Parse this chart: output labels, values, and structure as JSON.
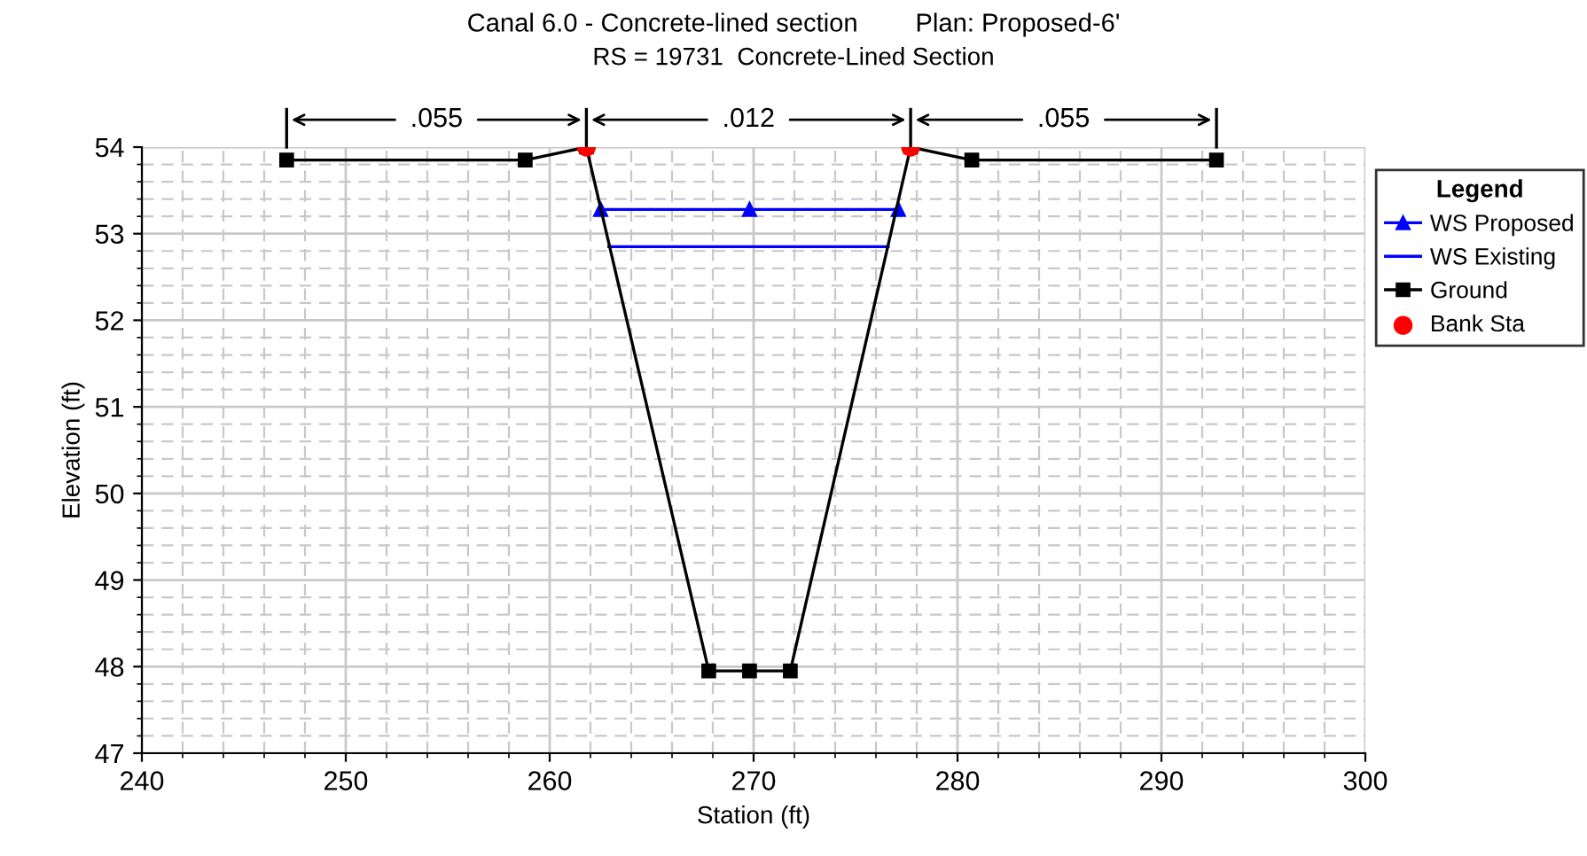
{
  "chart_data": {
    "type": "line",
    "title": "Canal 6.0 - Concrete-lined section        Plan: Proposed-6'",
    "subtitle": "RS = 19731  Concrete-Lined Section",
    "xlabel": "Station (ft)",
    "ylabel": "Elevation (ft)",
    "legend_title": "Legend",
    "series": [
      {
        "name": "WS Proposed",
        "color": "#0000ff",
        "marker": "triangle",
        "x": [
          262.5,
          269.8,
          277.1
        ],
        "values": [
          53.28,
          53.28,
          53.28
        ]
      },
      {
        "name": "WS Existing",
        "color": "#0000ff",
        "marker": "none",
        "x": [
          262.9,
          276.6
        ],
        "values": [
          52.85,
          52.85
        ]
      },
      {
        "name": "Ground",
        "color": "#000000",
        "marker": "square",
        "x": [
          247.1,
          258.8,
          261.8,
          267.8,
          269.8,
          271.8,
          277.7,
          280.7,
          292.7
        ],
        "values": [
          53.85,
          53.85,
          54.0,
          47.95,
          47.95,
          47.95,
          54.0,
          53.85,
          53.85
        ]
      },
      {
        "name": "Bank Sta",
        "type": "scatter",
        "color": "#ff0000",
        "marker": "circle",
        "x": [
          261.8,
          277.7
        ],
        "values": [
          54.0,
          54.0
        ]
      }
    ],
    "annotations": [
      ".055",
      ".012",
      ".055"
    ],
    "xlim": [
      240,
      300
    ],
    "xticks": [
      240,
      250,
      260,
      270,
      280,
      290,
      300
    ],
    "ylim": [
      47,
      54
    ],
    "yticks": [
      47,
      48,
      49,
      50,
      51,
      52,
      53,
      54
    ],
    "grid": true,
    "legend": "right"
  }
}
